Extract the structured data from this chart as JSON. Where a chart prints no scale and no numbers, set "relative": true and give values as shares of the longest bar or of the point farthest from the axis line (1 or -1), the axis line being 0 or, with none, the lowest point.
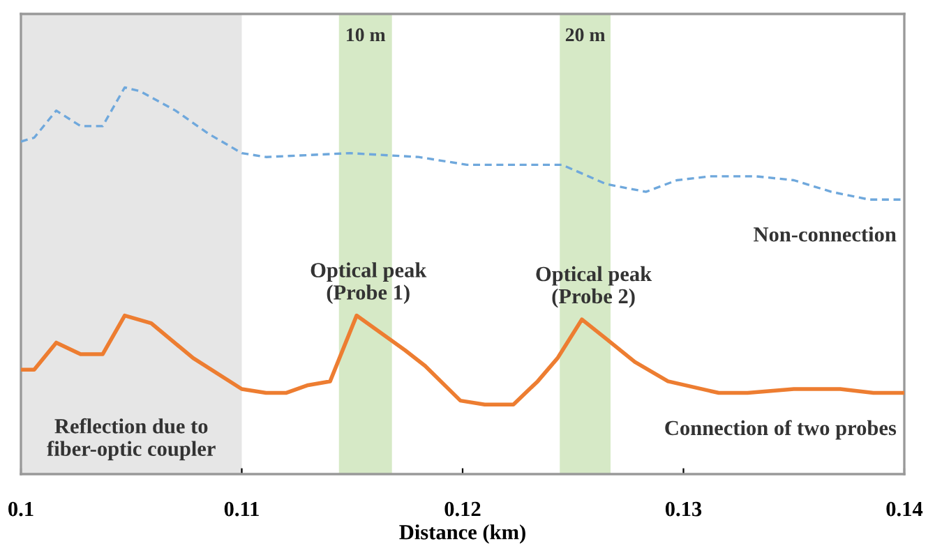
{
  "chart_data": {
    "type": "line",
    "relative": true,
    "xlabel": "Distance (km)",
    "xlim": [
      0.1,
      0.14
    ],
    "xticks": [
      0.1,
      0.11,
      0.12,
      0.13,
      0.14
    ],
    "grid": false,
    "legend": false,
    "series": [
      {
        "name": "Non-connection",
        "color": "#6fa8dc",
        "line_style": "dashed",
        "x": [
          0.1,
          0.1006,
          0.1016,
          0.1027,
          0.1037,
          0.1047,
          0.1054,
          0.107,
          0.1085,
          0.11,
          0.1111,
          0.1149,
          0.118,
          0.1202,
          0.1245,
          0.1265,
          0.1283,
          0.1297,
          0.1312,
          0.1333,
          0.135,
          0.1367,
          0.1384,
          0.14
        ],
        "values": [
          0.86,
          0.87,
          0.94,
          0.9,
          0.9,
          1.0,
          0.99,
          0.94,
          0.88,
          0.83,
          0.82,
          0.83,
          0.82,
          0.8,
          0.8,
          0.75,
          0.73,
          0.76,
          0.77,
          0.77,
          0.76,
          0.73,
          0.71,
          0.71
        ]
      },
      {
        "name": "Connection of two probes",
        "color": "#ed7d31",
        "line_style": "solid",
        "x": [
          0.1,
          0.1006,
          0.1016,
          0.1027,
          0.1037,
          0.1047,
          0.1059,
          0.1078,
          0.11,
          0.1111,
          0.112,
          0.113,
          0.114,
          0.1152,
          0.1174,
          0.1183,
          0.1199,
          0.121,
          0.1223,
          0.1234,
          0.1243,
          0.1254,
          0.1265,
          0.1278,
          0.1293,
          0.1316,
          0.1329,
          0.135,
          0.1371,
          0.1386,
          0.14
        ],
        "values": [
          0.27,
          0.27,
          0.34,
          0.31,
          0.31,
          0.41,
          0.39,
          0.3,
          0.22,
          0.21,
          0.21,
          0.23,
          0.24,
          0.41,
          0.32,
          0.28,
          0.19,
          0.18,
          0.18,
          0.24,
          0.3,
          0.4,
          0.35,
          0.29,
          0.24,
          0.21,
          0.21,
          0.22,
          0.22,
          0.21,
          0.21
        ]
      }
    ],
    "bands": [
      {
        "axis": "x",
        "from": 0.1,
        "to": 0.11,
        "label": "Reflection due to\nfiber-optic coupler",
        "color": "#e6e6e6"
      },
      {
        "axis": "x",
        "from": 0.1144,
        "to": 0.1168,
        "label": "10 m",
        "color": "#d6e9c6"
      },
      {
        "axis": "x",
        "from": 0.1244,
        "to": 0.1267,
        "label": "20 m",
        "color": "#d6e9c6"
      }
    ],
    "annotations": [
      {
        "text": "Optical peak\n(Probe 1)",
        "x": 0.1152,
        "y": 0.41
      },
      {
        "text": "Optical peak\n(Probe 2)",
        "x": 0.1254,
        "y": 0.4
      }
    ]
  }
}
